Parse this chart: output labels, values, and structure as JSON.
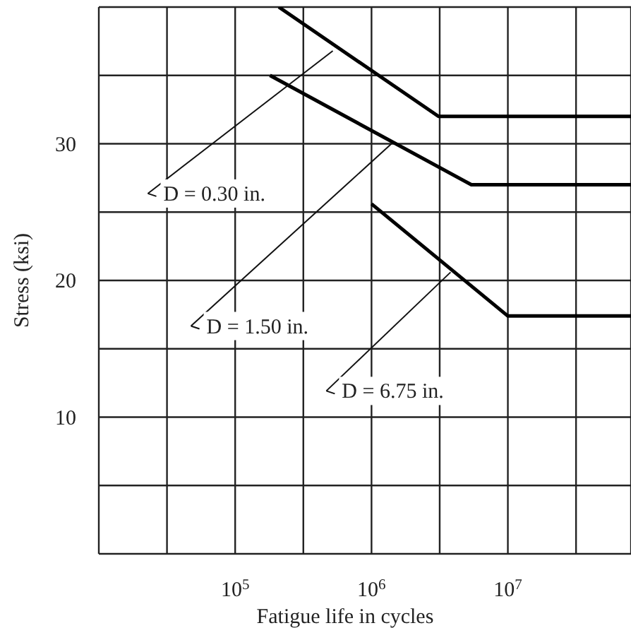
{
  "chart_data": {
    "type": "line",
    "xlabel": "Fatigue life in cycles",
    "ylabel": "Stress (ksi)",
    "log": "x",
    "grid": true,
    "marker": "none",
    "line_style": "solid",
    "xlim": [
      10000,
      80000000
    ],
    "xticks": [
      {
        "value": 31623,
        "label": null
      },
      {
        "value": 100000,
        "label": "10$^{5}$"
      },
      {
        "value": 316228,
        "label": null
      },
      {
        "value": 1000000,
        "label": "10$^{6}$"
      },
      {
        "value": 3162278,
        "label": null
      },
      {
        "value": 10000000,
        "label": "10$^{7}$"
      },
      {
        "value": 31622777,
        "label": null
      }
    ],
    "ylim": [
      0,
      40
    ],
    "yticks": [
      {
        "value": 0,
        "label": null
      },
      {
        "value": 5,
        "label": null
      },
      10,
      {
        "value": 15,
        "label": null
      },
      20,
      {
        "value": 25,
        "label": null
      },
      30,
      {
        "value": 35,
        "label": null
      },
      {
        "value": 40,
        "label": null
      }
    ],
    "series": [
      {
        "color": "#000000",
        "x": [
          209000,
          3100000,
          80000000
        ],
        "values": [
          40,
          32,
          32
        ]
      },
      {
        "color": "#000000",
        "x": [
          180000,
          5400000,
          80000000
        ],
        "values": [
          35,
          27,
          27
        ]
      },
      {
        "color": "#000000",
        "x": [
          1000000,
          10000000,
          80000000
        ],
        "values": [
          25.6,
          17.4,
          17.4
        ]
      }
    ],
    "annotations": [
      {
        "text": "D = 0.30 in.",
        "x": 520000,
        "y": 36.8
      },
      {
        "text": "D = 1.50 in.",
        "x": 1400000,
        "y": 30
      },
      {
        "text": "D = 6.75 in.",
        "x": 3800000,
        "y": 20.6
      }
    ]
  }
}
